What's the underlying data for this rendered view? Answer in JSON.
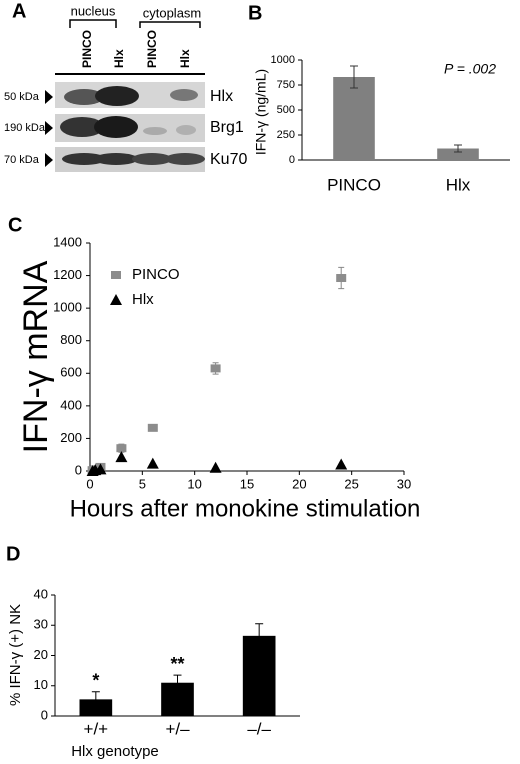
{
  "blot": {
    "panel": "A",
    "groups": [
      "nucleus",
      "cytoplasm"
    ],
    "lanes": [
      "PINCO",
      "Hlx",
      "PINCO",
      "Hlx"
    ],
    "rows": [
      {
        "size": "50 kDa",
        "protein": "Hlx"
      },
      {
        "size": "190 kDa",
        "protein": "Brg1"
      },
      {
        "size": "70 kDa",
        "protein": "Ku70"
      }
    ]
  },
  "chart_data": [
    {
      "type": "bar",
      "panel": "B",
      "ylabel": "IFN-γ (ng/mL)",
      "categories": [
        "PINCO",
        "Hlx"
      ],
      "values": [
        830,
        115
      ],
      "errors": [
        110,
        35
      ],
      "color": "#808080",
      "ylim": [
        0,
        1000
      ],
      "yticks": [
        0,
        250,
        500,
        750,
        1000
      ],
      "annotation": "P = .002"
    },
    {
      "type": "scatter",
      "panel": "C",
      "ylabel": "IFN-γ mRNA",
      "xlabel": "Hours after monokine stimulation",
      "x": [
        0.25,
        0.5,
        1,
        3,
        6,
        12,
        24
      ],
      "series": [
        {
          "name": "PINCO",
          "color": "#8c8c8c",
          "marker": "square",
          "values": [
            5,
            10,
            25,
            140,
            265,
            630,
            1185
          ],
          "errors": [
            3,
            3,
            5,
            25,
            10,
            35,
            65
          ]
        },
        {
          "name": "Hlx",
          "color": "#000000",
          "marker": "triangle",
          "values": [
            0,
            5,
            10,
            85,
            45,
            20,
            40
          ]
        }
      ],
      "xlim": [
        0,
        30
      ],
      "xticks": [
        0,
        5,
        10,
        15,
        20,
        25,
        30
      ],
      "ylim": [
        0,
        1400
      ],
      "yticks": [
        0,
        200,
        400,
        600,
        800,
        1000,
        1200,
        1400
      ],
      "legend": "upper left"
    },
    {
      "type": "bar",
      "panel": "D",
      "ylabel": "% IFN-γ (+) NK",
      "xlabel": "Hlx genotype",
      "categories": [
        "+/+",
        "+/–",
        "–/–"
      ],
      "values": [
        5.5,
        11,
        26.5
      ],
      "errors": [
        2.5,
        2.5,
        4
      ],
      "significance": [
        "*",
        "**",
        null
      ],
      "color": "#000000",
      "ylim": [
        0,
        40
      ],
      "yticks": [
        0,
        10,
        20,
        30,
        40
      ]
    }
  ]
}
